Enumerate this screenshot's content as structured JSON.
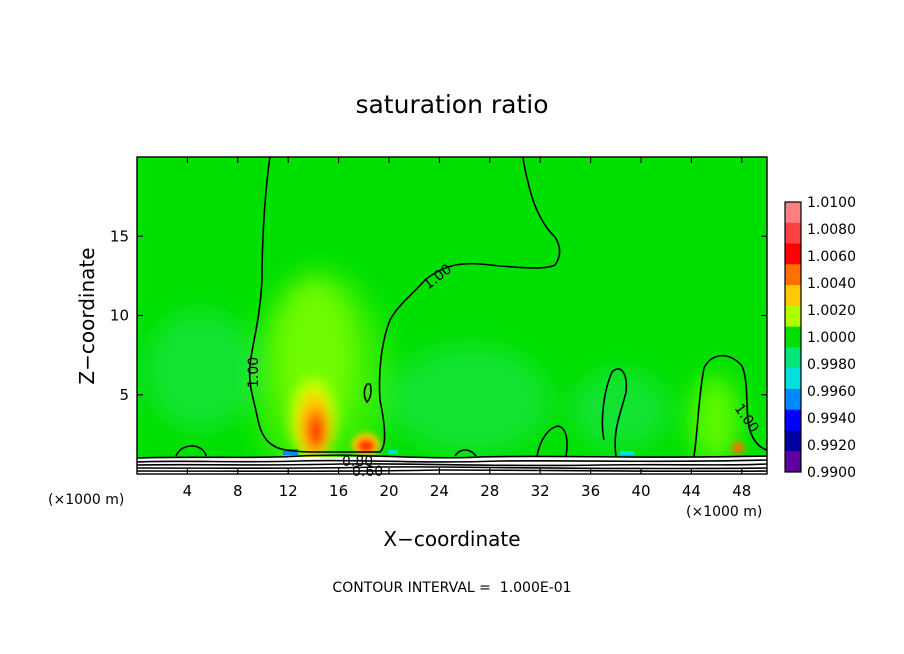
{
  "chart_data": {
    "type": "heatmap",
    "title": "saturation ratio",
    "xlabel": "X−coordinate",
    "ylabel": "Z−coordinate",
    "x_unit": "(×1000 m)",
    "y_unit": "(×1000 m)",
    "xlim": [
      0,
      50
    ],
    "ylim": [
      0,
      20
    ],
    "x_ticks": [
      4,
      8,
      12,
      16,
      20,
      24,
      28,
      32,
      36,
      40,
      44,
      48
    ],
    "y_ticks": [
      5,
      10,
      15
    ],
    "colorbar": {
      "levels": [
        "1.0100",
        "1.0080",
        "1.0060",
        "1.0040",
        "1.0020",
        "1.0000",
        "0.9980",
        "0.9960",
        "0.9940",
        "0.9920",
        "0.9900"
      ],
      "colors": [
        "#ff8080",
        "#ff4040",
        "#ff0000",
        "#ff7000",
        "#ffc800",
        "#b0ff00",
        "#00e000",
        "#00e878",
        "#00e0e0",
        "#0088ff",
        "#0000ff",
        "#0000a0",
        "#6000a0"
      ]
    },
    "background_value": 1.0,
    "features": [
      {
        "name": "updraft maximum",
        "x": 13.8,
        "z": 2.5,
        "value": 1.007
      },
      {
        "name": "updraft maximum",
        "x": 18.0,
        "z": 1.6,
        "value": 1.006
      },
      {
        "name": "local maximum",
        "x": 46.5,
        "z": 2.0,
        "value": 1.002
      },
      {
        "name": "dry layer",
        "x": 25,
        "z": 0.6,
        "value": 0.8
      }
    ],
    "contour_labels": [
      {
        "text": "1.00",
        "x": 9.0,
        "z": 6.5
      },
      {
        "text": "1.00",
        "x": 24.5,
        "z": 12.5
      },
      {
        "text": "1.00",
        "x": 47.0,
        "z": 3.0
      },
      {
        "text": "0.80",
        "x": 17.0,
        "z": 0.8
      },
      {
        "text": "0.60",
        "x": 18.0,
        "z": 0.2
      }
    ],
    "contour_interval": "CONTOUR INTERVAL =  1.000E-01"
  }
}
